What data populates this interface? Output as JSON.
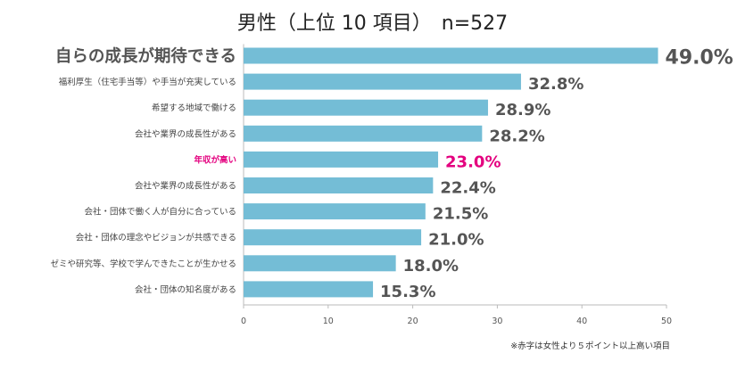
{
  "chart_data": {
    "type": "bar",
    "orientation": "horizontal",
    "title": "男性（上位 10 項目）　n=527",
    "categories": [
      "自らの成長が期待できる",
      "福利厚生（住宅手当等）や手当が充実している",
      "希望する地域で働ける",
      "会社や業界の成長性がある",
      "年収が高い",
      "会社や業界の成長性がある",
      "会社・団体で働く人が自分に合っている",
      "会社・団体の理念やビジョンが共感できる",
      "ゼミや研究等、学校で学んできたことが生かせる",
      "会社・団体の知名度がある"
    ],
    "values": [
      49.0,
      32.8,
      28.9,
      28.2,
      23.0,
      22.4,
      21.5,
      21.0,
      18.0,
      15.3
    ],
    "value_labels": [
      "49.0%",
      "32.8%",
      "28.9%",
      "28.2%",
      "23.0%",
      "22.4%",
      "21.5%",
      "21.0%",
      "18.0%",
      "15.3%"
    ],
    "highlighted": [
      false,
      false,
      false,
      false,
      true,
      false,
      false,
      false,
      false,
      false
    ],
    "emphasized_top": true,
    "xlim": [
      0,
      50
    ],
    "xticks": [
      0,
      10,
      20,
      30,
      40,
      50
    ],
    "xlabel": "",
    "ylabel": "",
    "grid": false,
    "legend": "none",
    "note": "※赤字は女性より５ポイント以上高い項目",
    "colors": {
      "bar": "#74bdd6",
      "highlight": "#e4007f",
      "text": "#444444",
      "value_text": "#555555",
      "axis": "#bbbbbb"
    }
  }
}
